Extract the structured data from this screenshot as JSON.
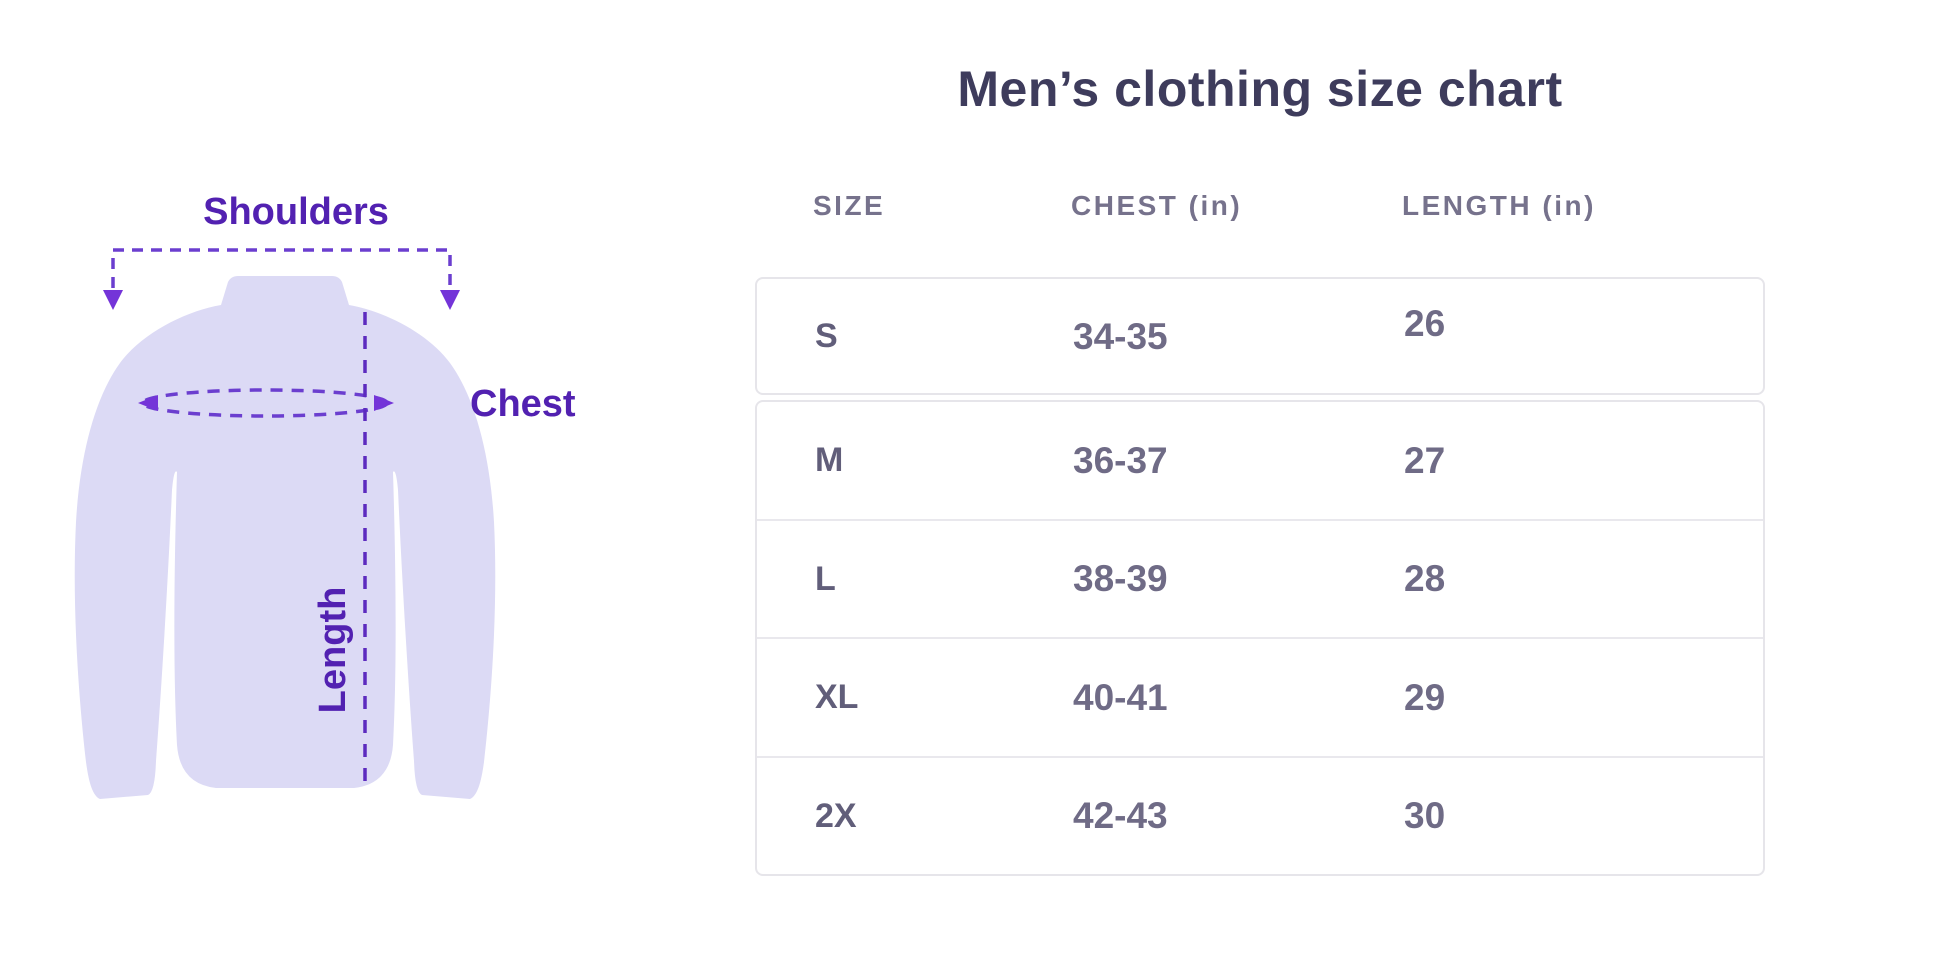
{
  "title": "Men’s clothing size chart",
  "diagram": {
    "labels": {
      "shoulders": "Shoulders",
      "chest": "Chest",
      "length": "Length"
    },
    "colors": {
      "shirt_fill": "#dcdaf5",
      "label_purple": "#5221b1",
      "dash_purple": "#6b3ecf",
      "arrow_purple": "#7434d8"
    }
  },
  "table": {
    "headers": [
      {
        "key": "size",
        "label": "SIZE"
      },
      {
        "key": "chest",
        "label": "CHEST (in)"
      },
      {
        "key": "length",
        "label": "LENGTH (in)"
      }
    ],
    "rows": [
      {
        "size": "S",
        "chest": "34-35",
        "length": "26"
      },
      {
        "size": "M",
        "chest": "36-37",
        "length": "27"
      },
      {
        "size": "L",
        "chest": "38-39",
        "length": "28"
      },
      {
        "size": "XL",
        "chest": "40-41",
        "length": "29"
      },
      {
        "size": "2X",
        "chest": "42-43",
        "length": "30"
      }
    ]
  },
  "chart_data": {
    "type": "table",
    "title": "Men’s clothing size chart",
    "columns": [
      "SIZE",
      "CHEST (in)",
      "LENGTH (in)"
    ],
    "rows": [
      [
        "S",
        "34-35",
        "26"
      ],
      [
        "M",
        "36-37",
        "27"
      ],
      [
        "L",
        "38-39",
        "28"
      ],
      [
        "XL",
        "40-41",
        "29"
      ],
      [
        "2X",
        "42-43",
        "30"
      ]
    ],
    "units": "in"
  }
}
